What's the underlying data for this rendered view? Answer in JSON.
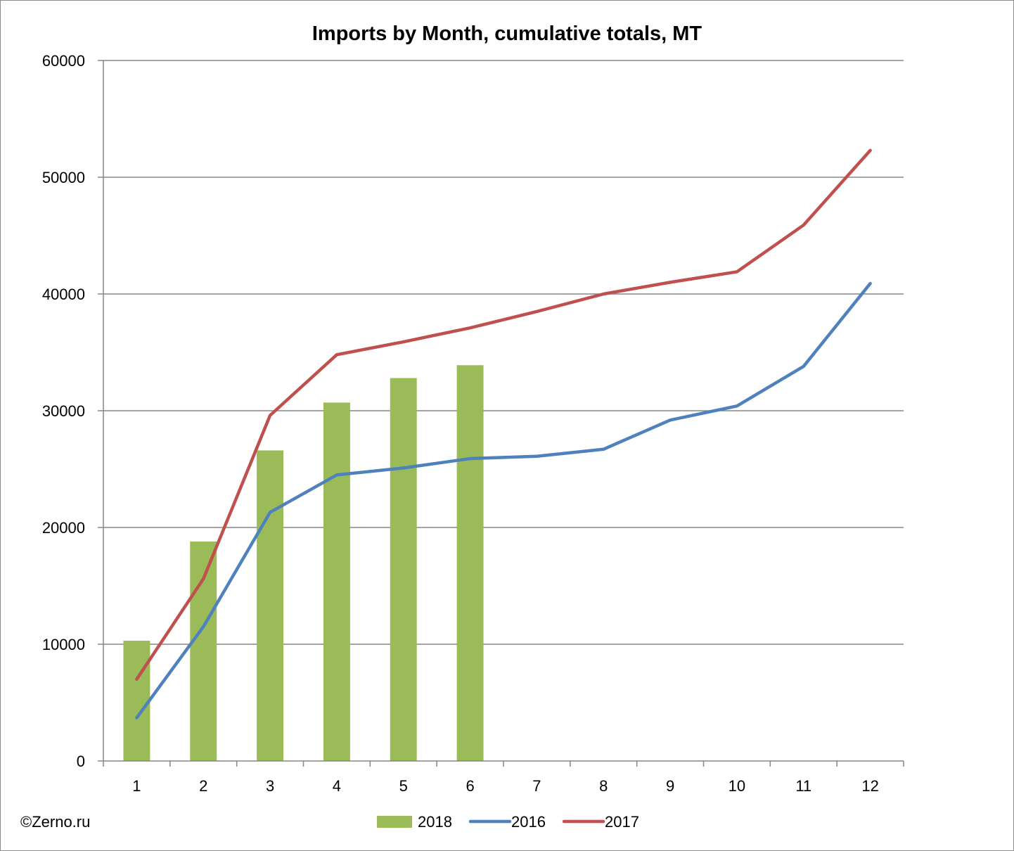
{
  "chart_data": {
    "type": "bar",
    "title": "Imports by Month, cumulative totals, MT",
    "xlabel": "",
    "ylabel": "",
    "categories": [
      "1",
      "2",
      "3",
      "4",
      "5",
      "6",
      "7",
      "8",
      "9",
      "10",
      "11",
      "12"
    ],
    "ylim": [
      0,
      60000
    ],
    "yticks": [
      0,
      10000,
      20000,
      30000,
      40000,
      50000,
      60000
    ],
    "ytick_labels": [
      "0",
      "10000",
      "20000",
      "30000",
      "40000",
      "50000",
      "60000"
    ],
    "grid": true,
    "legend_position": "bottom",
    "series": [
      {
        "name": "2018",
        "kind": "bar",
        "color": "#9bbb59",
        "values": [
          10300,
          18800,
          26600,
          30700,
          32800,
          33900,
          null,
          null,
          null,
          null,
          null,
          null
        ]
      },
      {
        "name": "2016",
        "kind": "line",
        "color": "#4f81bd",
        "values": [
          3700,
          11500,
          21300,
          24500,
          25100,
          25900,
          26100,
          26700,
          29200,
          30400,
          33800,
          40900
        ]
      },
      {
        "name": "2017",
        "kind": "line",
        "color": "#c0504d",
        "values": [
          7000,
          15600,
          29600,
          34800,
          35900,
          37100,
          38500,
          40000,
          41000,
          41900,
          45900,
          52300
        ]
      }
    ]
  },
  "credit": "©Zerno.ru",
  "colors": {
    "gridline": "#868686",
    "axis": "#868686"
  }
}
